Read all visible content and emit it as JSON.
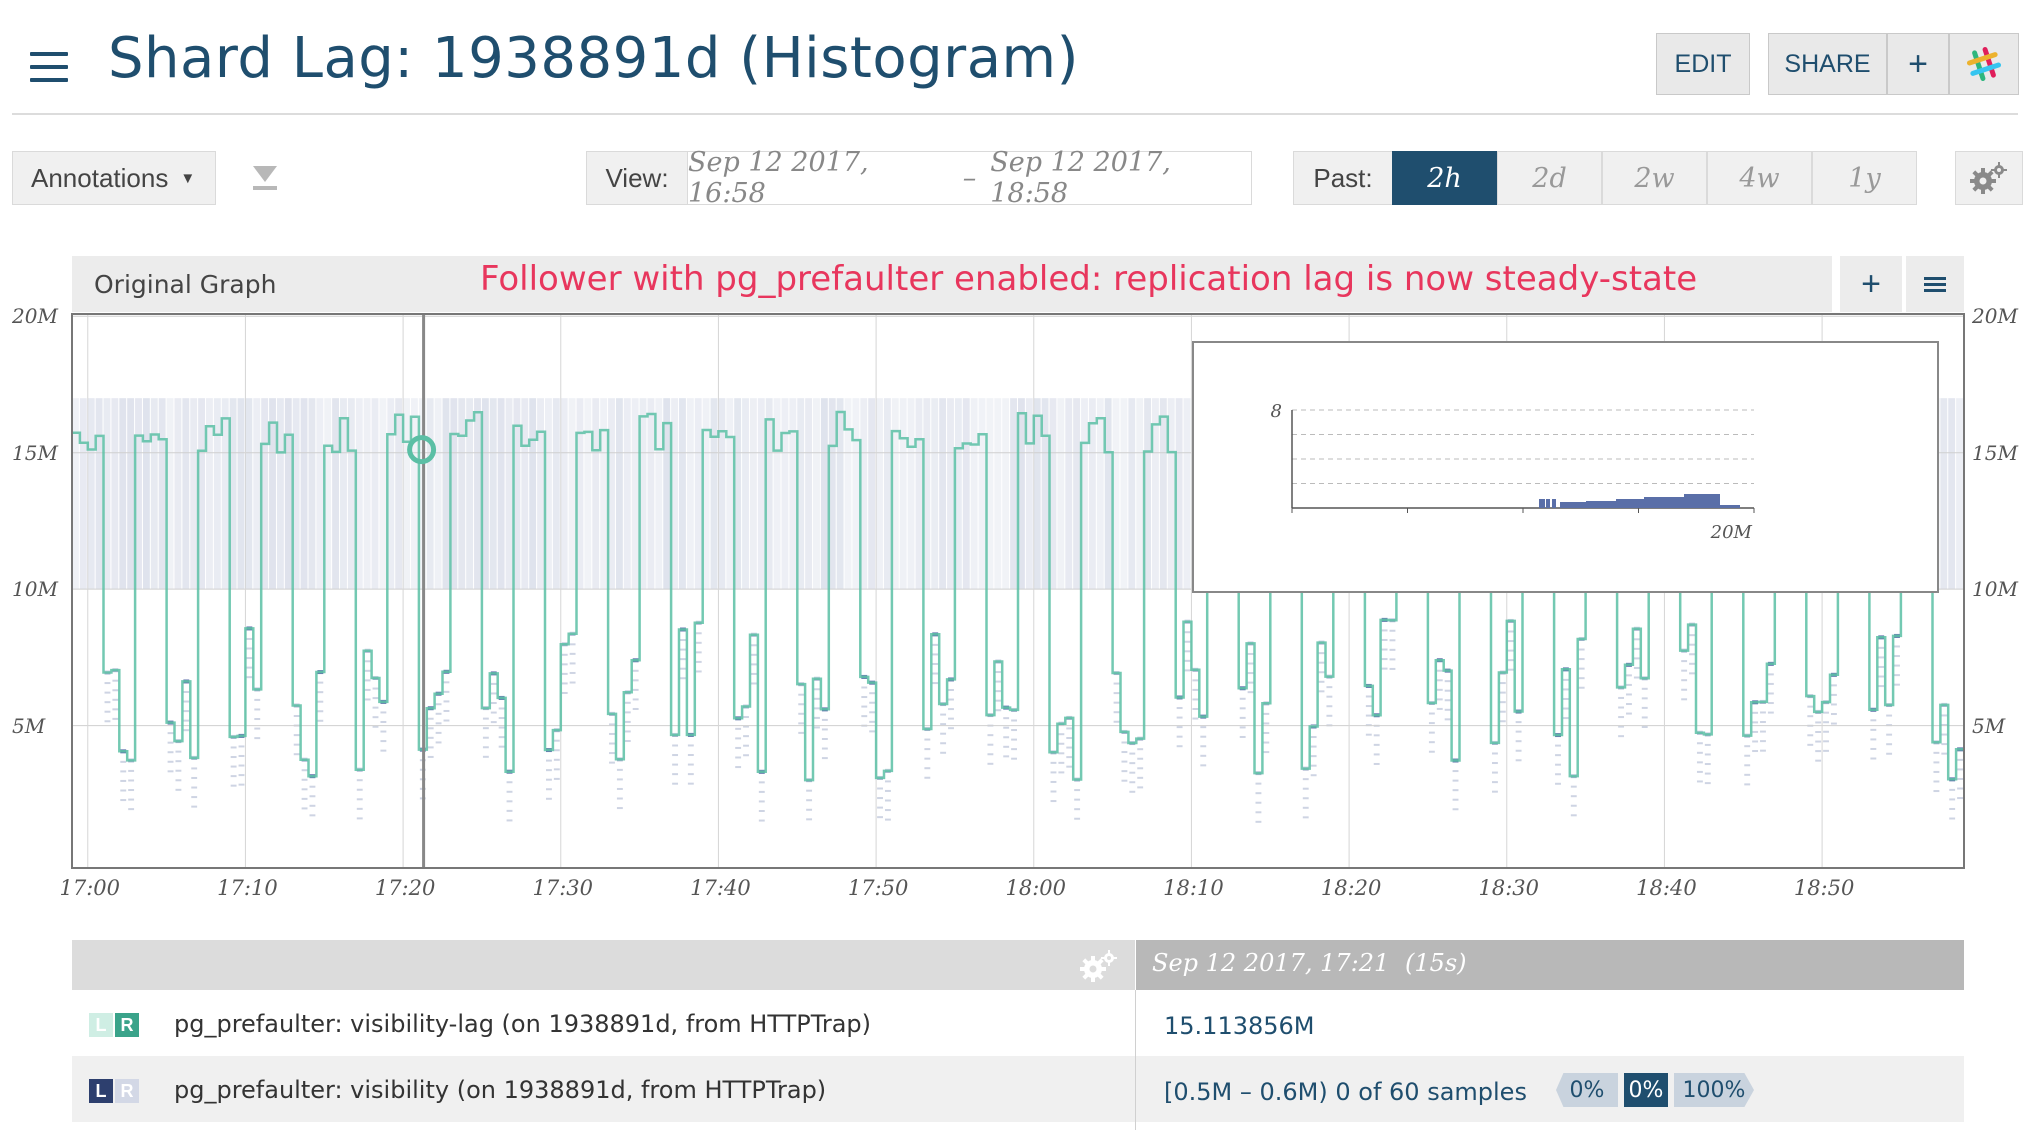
{
  "header": {
    "title": "Shard Lag: 1938891d (Histogram)",
    "edit_label": "EDIT",
    "share_label": "SHARE",
    "plus_label": "+",
    "menu_icon": "hamburger-icon",
    "slack_icon": "slack-icon"
  },
  "toolbar": {
    "annotations_label": "Annotations",
    "view_label": "View:",
    "view_start": "Sep 12 2017, 16:58",
    "view_sep": "–",
    "view_end": "Sep 12 2017, 18:58",
    "past_label": "Past:",
    "ranges": [
      "2h",
      "2d",
      "2w",
      "4w",
      "1y"
    ],
    "active_range": "2h",
    "settings_icon": "gear-icon"
  },
  "graph": {
    "tab_label": "Original Graph",
    "annotation": "Follower with pg_prefaulter enabled: replication lag is now steady-state",
    "add_label": "+",
    "colors": {
      "line": "#5bbfa5",
      "heat": "#c9cfe0",
      "heat_dark": "#4a5fa0",
      "axis": "#777777"
    }
  },
  "chart_data": {
    "type": "heatmap",
    "title": "",
    "y_tick_labels": [
      "20M",
      "15M",
      "10M",
      "5M"
    ],
    "x_tick_labels": [
      "17:00",
      "17:10",
      "17:20",
      "17:30",
      "17:40",
      "17:50",
      "18:00",
      "18:10",
      "18:20",
      "18:30",
      "18:40",
      "18:50"
    ],
    "ylim": [
      0,
      20000000
    ],
    "xlim": [
      "16:59",
      "18:59"
    ],
    "series": [
      {
        "name": "pg_prefaulter: visibility-lag",
        "kind": "line"
      },
      {
        "name": "pg_prefaulter: visibility",
        "kind": "histogram"
      }
    ],
    "hover_time": "17:21",
    "hover_value": 15113856,
    "popup": {
      "type": "bar",
      "y_tick_label": "8",
      "x_tick_label": "20M",
      "ylim": [
        0,
        8
      ]
    }
  },
  "legend": {
    "timestamp": "Sep 12 2017, 17:21",
    "period": "(15s)",
    "rows": [
      {
        "left_badge": "L",
        "right_badge": "R",
        "name": "pg_prefaulter: visibility-lag (on 1938891d, from HTTPTrap)",
        "value": "15.113856M"
      },
      {
        "left_badge": "L",
        "right_badge": "R",
        "name": "pg_prefaulter: visibility (on 1938891d, from HTTPTrap)",
        "value": "[0.5M – 0.6M) 0 of 60 samples",
        "pct_low": "0%",
        "pct_mid": "0%",
        "pct_high": "100%"
      }
    ]
  }
}
